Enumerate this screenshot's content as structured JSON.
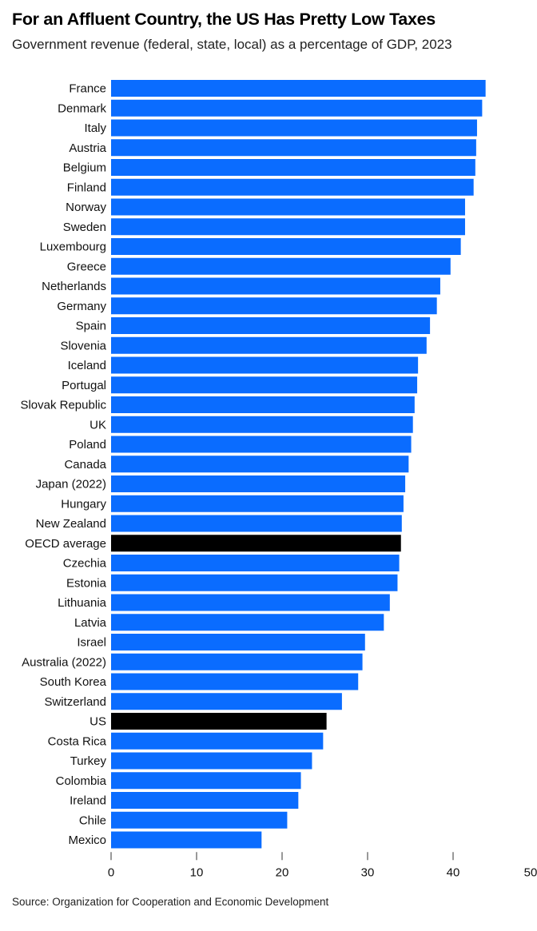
{
  "title": "For an Affluent Country, the US Has Pretty Low Taxes",
  "subtitle": "Government revenue (federal, state, local) as a percentage of GDP, 2023",
  "source": "Source: Organization for Cooperation and Economic Development",
  "colors": {
    "bar": "#0a6cff",
    "highlight": "#000000"
  },
  "chart_data": {
    "type": "bar",
    "orientation": "horizontal",
    "xlim": [
      0,
      50
    ],
    "xticks": [
      0,
      10,
      20,
      30,
      40,
      50
    ],
    "grid": false,
    "legend": "none",
    "highlighted": [
      "OECD average",
      "US"
    ],
    "categories": [
      "France",
      "Denmark",
      "Italy",
      "Austria",
      "Belgium",
      "Finland",
      "Norway",
      "Sweden",
      "Luxembourg",
      "Greece",
      "Netherlands",
      "Germany",
      "Spain",
      "Slovenia",
      "Iceland",
      "Portugal",
      "Slovak Republic",
      "UK",
      "Poland",
      "Canada",
      "Japan (2022)",
      "Hungary",
      "New Zealand",
      "OECD average",
      "Czechia",
      "Estonia",
      "Lithuania",
      "Latvia",
      "Israel",
      "Australia (2022)",
      "South Korea",
      "Switzerland",
      "US",
      "Costa Rica",
      "Turkey",
      "Colombia",
      "Ireland",
      "Chile",
      "Mexico"
    ],
    "values": [
      43.8,
      43.4,
      42.8,
      42.7,
      42.6,
      42.4,
      41.4,
      41.4,
      40.9,
      39.7,
      38.5,
      38.1,
      37.3,
      36.9,
      35.9,
      35.8,
      35.5,
      35.3,
      35.1,
      34.8,
      34.4,
      34.2,
      34.0,
      33.9,
      33.7,
      33.5,
      32.6,
      31.9,
      29.7,
      29.4,
      28.9,
      27.0,
      25.2,
      24.8,
      23.5,
      22.2,
      21.9,
      20.6,
      17.6
    ]
  }
}
